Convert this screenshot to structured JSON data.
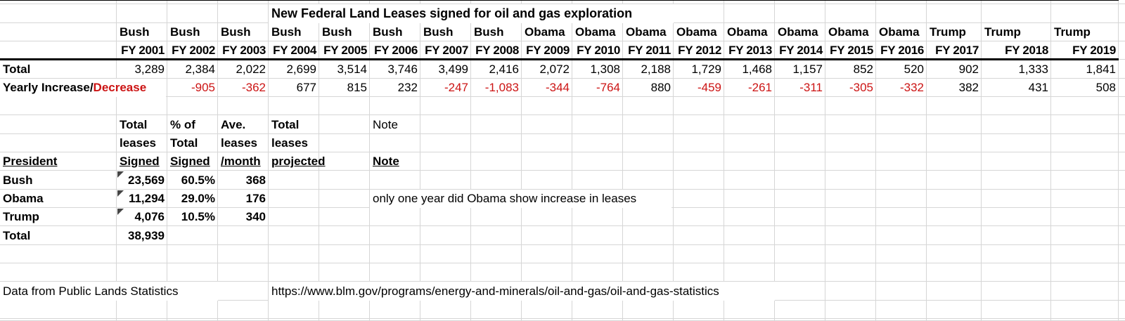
{
  "colors": {
    "negative": "#cc1414",
    "text": "#000000",
    "gridline": "#d6d6d6"
  },
  "sheet": {
    "title": "New Federal Land Leases signed for oil and gas exploration",
    "year_table": {
      "presidents": [
        "Bush",
        "Bush",
        "Bush",
        "Bush",
        "Bush",
        "Bush",
        "Bush",
        "Bush",
        "Obama",
        "Obama",
        "Obama",
        "Obama",
        "Obama",
        "Obama",
        "Obama",
        "Obama",
        "Trump",
        "Trump",
        "Trump"
      ],
      "fiscal_years": [
        "FY 2001",
        "FY 2002",
        "FY 2003",
        "FY 2004",
        "FY 2005",
        "FY 2006",
        "FY 2007",
        "FY 2008",
        "FY 2009",
        "FY 2010",
        "FY 2011",
        "FY 2012",
        "FY 2013",
        "FY 2014",
        "FY 2015",
        "FY 2016",
        "FY 2017",
        "FY 2018",
        "FY 2019"
      ],
      "total_row_label": "Total",
      "totals": [
        "3,289",
        "2,384",
        "2,022",
        "2,699",
        "3,514",
        "3,746",
        "3,499",
        "2,416",
        "2,072",
        "1,308",
        "2,188",
        "1,729",
        "1,468",
        "1,157",
        "852",
        "520",
        "902",
        "1,333",
        "1,841"
      ],
      "yearly_label_black": "Yearly Increase/",
      "yearly_label_red": "Decrease",
      "yearly_changes": [
        "",
        "-905",
        "-362",
        "677",
        "815",
        "232",
        "-247",
        "-1,083",
        "-344",
        "-764",
        "880",
        "-459",
        "-261",
        "-311",
        "-305",
        "-332",
        "382",
        "431",
        "508"
      ]
    },
    "summary_table": {
      "headers": {
        "president": "President",
        "col1": [
          "Total",
          "leases",
          "Signed"
        ],
        "col2": [
          "% of",
          "Total",
          "Signed"
        ],
        "col3": [
          "Ave.",
          "leases",
          "/month"
        ],
        "col4": [
          "Total",
          "leases",
          "projected"
        ],
        "note_top": "Note",
        "note": "Note"
      },
      "rows": [
        {
          "president": "Bush",
          "total_leases": "23,569",
          "pct_of_total": "60.5%",
          "ave_per_month": "368"
        },
        {
          "president": "Obama",
          "total_leases": "11,294",
          "pct_of_total": "29.0%",
          "ave_per_month": "176"
        },
        {
          "president": "Trump",
          "total_leases": "4,076",
          "pct_of_total": "10.5%",
          "ave_per_month": "340"
        }
      ],
      "total_label": "Total",
      "total_value": "38,939",
      "note_text": "only one year did Obama show increase in leases"
    },
    "footer": {
      "source_label": "Data from Public Lands Statistics",
      "source_url": "https://www.blm.gov/programs/energy-and-minerals/oil-and-gas/oil-and-gas-statistics"
    }
  }
}
